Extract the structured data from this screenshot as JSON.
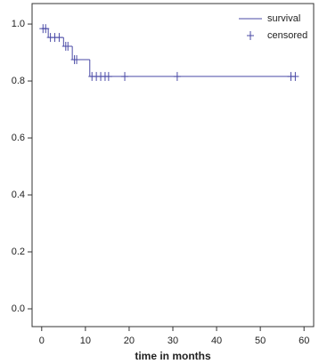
{
  "chart_data": {
    "type": "step",
    "xlabel": "time in months",
    "xlim": [
      -2.2,
      62.2
    ],
    "ylim": [
      -0.0625,
      1.072
    ],
    "xticks": [
      0,
      10,
      20,
      30,
      40,
      50,
      60
    ],
    "yticks": [
      {
        "value": 0,
        "label": "0.0"
      },
      0.2,
      0.4,
      0.6,
      0.8,
      {
        "value": 1,
        "label": "1.0"
      }
    ],
    "legend": "upper right",
    "series": [
      {
        "name": "survival",
        "color": "#4a4aa6",
        "kind": "step",
        "x": [
          0,
          1.5,
          5,
          7,
          11,
          58
        ],
        "values": [
          0.984,
          0.953,
          0.922,
          0.875,
          0.816,
          0.816
        ]
      },
      {
        "name": "censored",
        "color": "#4a4aa6",
        "kind": "marker",
        "x": [
          0.3,
          0.9,
          2,
          3,
          4,
          5.5,
          6,
          7.5,
          8,
          11.5,
          12.5,
          13.5,
          14.5,
          15.3,
          19,
          31,
          57,
          58
        ],
        "values": [
          0.984,
          0.984,
          0.953,
          0.953,
          0.953,
          0.922,
          0.922,
          0.875,
          0.875,
          0.816,
          0.816,
          0.816,
          0.816,
          0.816,
          0.816,
          0.816,
          0.816,
          0.816
        ]
      }
    ]
  }
}
